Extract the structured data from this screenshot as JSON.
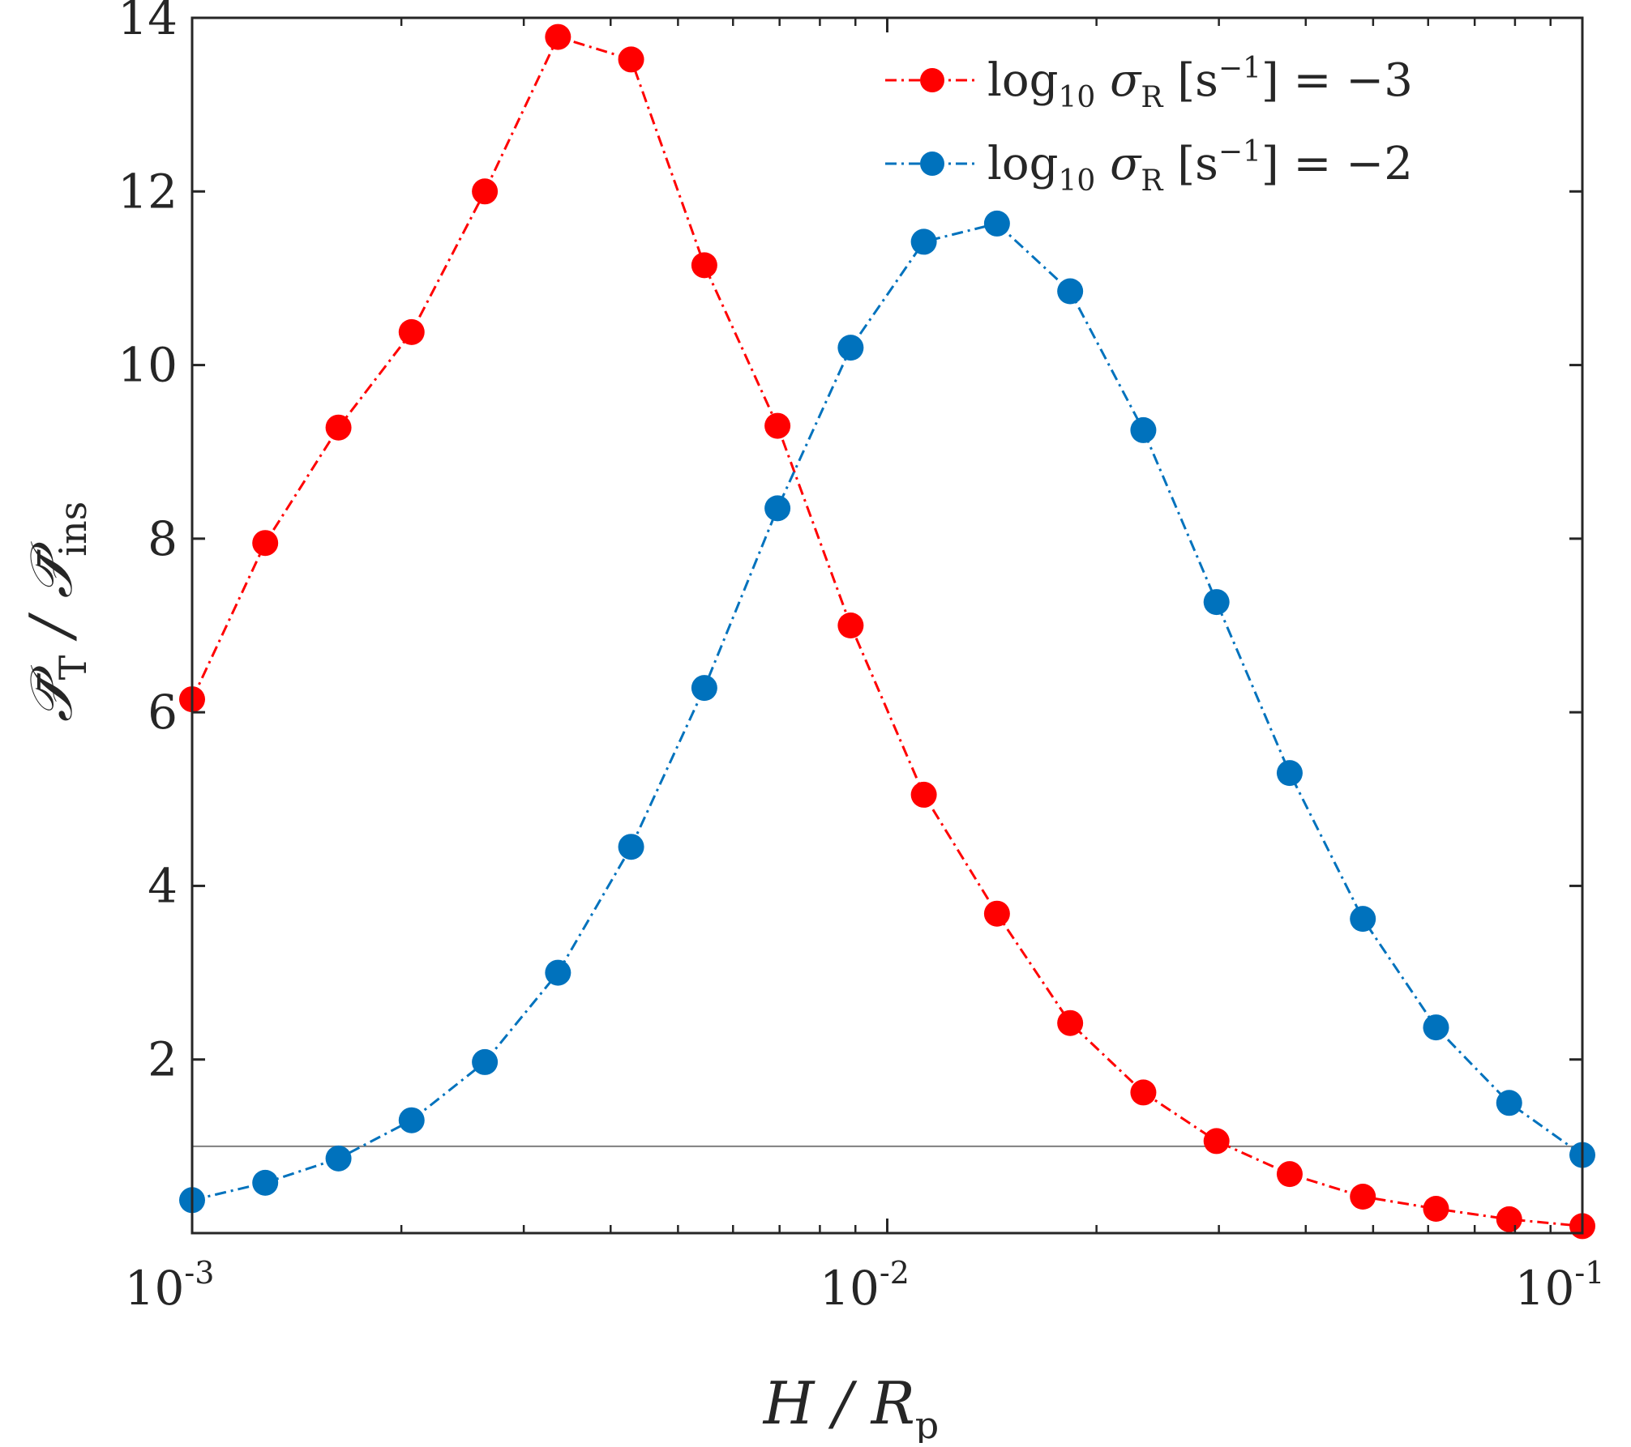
{
  "chart_data": {
    "type": "line",
    "title": "",
    "xscale": "log",
    "xlim": [
      0.001,
      0.1
    ],
    "ylim": [
      0,
      14
    ],
    "xlabel": {
      "main": "H / R",
      "sub": "p"
    },
    "ylabel": {
      "main": "𝒫̄",
      "sub1": "T",
      "mid": " / 𝒫̄",
      "sub2": "ins"
    },
    "x_ticks": [
      {
        "value": 0.001,
        "base": "10",
        "exp": "-3"
      },
      {
        "value": 0.01,
        "base": "10",
        "exp": "-2"
      },
      {
        "value": 0.1,
        "base": "10",
        "exp": "-1"
      }
    ],
    "y_ticks": [
      {
        "value": 2,
        "label": "2"
      },
      {
        "value": 4,
        "label": "4"
      },
      {
        "value": 6,
        "label": "6"
      },
      {
        "value": 8,
        "label": "8"
      },
      {
        "value": 10,
        "label": "10"
      },
      {
        "value": 12,
        "label": "12"
      },
      {
        "value": 14,
        "label": "14"
      }
    ],
    "reference_line": {
      "y": 1
    },
    "grid": false,
    "legend_position": "top-right",
    "x": [
      0.001,
      0.001274,
      0.001624,
      0.002069,
      0.002637,
      0.00336,
      0.004281,
      0.005456,
      0.006952,
      0.008859,
      0.011288,
      0.014384,
      0.01833,
      0.023357,
      0.029764,
      0.037927,
      0.048329,
      0.061585,
      0.078476,
      0.1
    ],
    "series": [
      {
        "name": "log10 σR [s−1] = −3",
        "legend": {
          "pre": "log",
          "sub_a": "10",
          "mid": " σ",
          "sub_b": "R",
          "bracket_open": " [s",
          "sup": "−1",
          "post": "] = −3"
        },
        "color": "#ff0000",
        "values": [
          6.15,
          7.95,
          9.28,
          10.38,
          12.0,
          13.78,
          13.52,
          11.15,
          9.3,
          7.0,
          5.05,
          3.68,
          2.42,
          1.62,
          1.06,
          0.68,
          0.42,
          0.28,
          0.16,
          0.08
        ]
      },
      {
        "name": "log10 σR [s−1] = −2",
        "legend": {
          "pre": "log",
          "sub_a": "10",
          "mid": " σ",
          "sub_b": "R",
          "bracket_open": " [s",
          "sup": "−1",
          "post": "] = −2"
        },
        "color": "#0072bd",
        "values": [
          0.38,
          0.58,
          0.86,
          1.3,
          1.97,
          3.0,
          4.45,
          6.28,
          8.35,
          10.2,
          11.42,
          11.63,
          10.85,
          9.25,
          7.27,
          5.3,
          3.62,
          2.37,
          1.5,
          0.9
        ]
      }
    ]
  }
}
